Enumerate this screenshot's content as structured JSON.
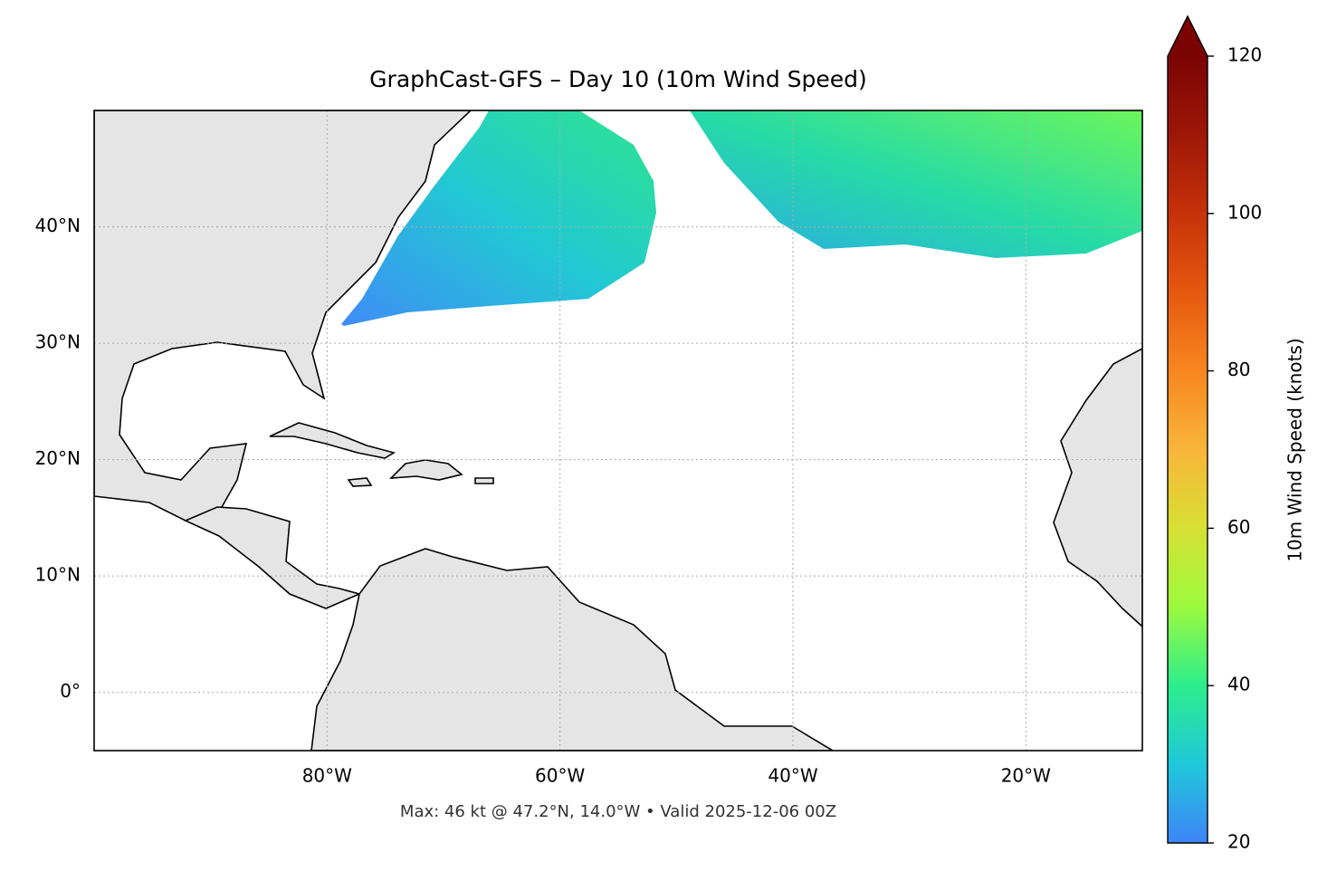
{
  "chart_data": {
    "type": "map",
    "title": "GraphCast-GFS – Day 10 (10m Wind Speed)",
    "footnote": "Max: 46 kt @ 47.2°N, 14.0°W • Valid 2025-12-06 00Z",
    "xlim": [
      -100,
      -10
    ],
    "ylim": [
      -5,
      50
    ],
    "xticks": [
      {
        "value": -80,
        "label": "80°W"
      },
      {
        "value": -60,
        "label": "60°W"
      },
      {
        "value": -40,
        "label": "40°W"
      },
      {
        "value": -20,
        "label": "20°W"
      }
    ],
    "yticks": [
      {
        "value": 0,
        "label": "0°"
      },
      {
        "value": 10,
        "label": "10°N"
      },
      {
        "value": 20,
        "label": "20°N"
      },
      {
        "value": 30,
        "label": "30°N"
      },
      {
        "value": 40,
        "label": "40°N"
      }
    ],
    "grid": true,
    "colorbar": {
      "label": "10m Wind Speed (knots)",
      "lim": [
        20,
        120
      ],
      "ticks": [
        20,
        40,
        60,
        80,
        100,
        120
      ],
      "extend": "max",
      "colors": [
        "#3f84f8",
        "#1fc8da",
        "#2cee8c",
        "#9cfa3e",
        "#d7e034",
        "#f9b53a",
        "#f8861f",
        "#e5580f",
        "#c63209",
        "#9e1708",
        "#7a0403"
      ]
    }
  }
}
